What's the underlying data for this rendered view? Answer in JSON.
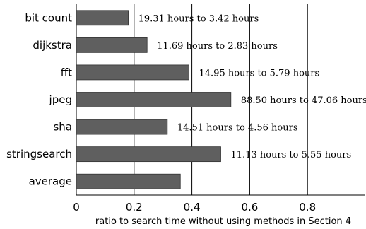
{
  "chart_data": {
    "type": "bar",
    "orientation": "horizontal",
    "categories": [
      "bit count",
      "dijkstra",
      "fft",
      "jpeg",
      "sha",
      "stringsearch",
      "average"
    ],
    "values": [
      0.18,
      0.245,
      0.39,
      0.535,
      0.315,
      0.5,
      0.36
    ],
    "annotations": [
      "19.31 hours to 3.42 hours",
      "11.69 hours to 2.83 hours",
      "14.95 hours to 5.79 hours",
      "88.50 hours to 47.06 hours",
      "14.51 hours to 4.56 hours",
      "11.13 hours to 5.55 hours",
      ""
    ],
    "title": "",
    "xlabel": "ratio to search time without using methods in Section 4",
    "ylabel": "",
    "xlim": [
      0,
      1
    ],
    "xticks": [
      "0",
      "0.2",
      "0.4",
      "0.6",
      "0.8"
    ],
    "xtick_values": [
      0,
      0.2,
      0.4,
      0.6,
      0.8
    ],
    "grid": "vertical lines at ticks",
    "bar_color": "#5f5f5f"
  }
}
